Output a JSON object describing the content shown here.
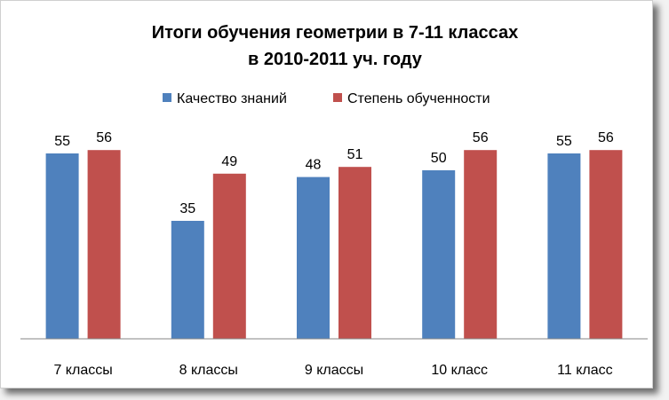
{
  "chart_data": {
    "type": "bar",
    "title": "Итоги обучения геометрии в 7-11 классах",
    "subtitle": "в 2010-2011 уч. году",
    "xlabel": "",
    "ylabel": "",
    "categories": [
      "7 классы",
      "8 классы",
      "9 классы",
      "10 класс",
      "11 класс"
    ],
    "series": [
      {
        "name": "Качество знаний",
        "values": [
          55,
          35,
          48,
          50,
          55
        ],
        "color": "#4f81bd"
      },
      {
        "name": "Степень обученности",
        "values": [
          56,
          49,
          51,
          56,
          56
        ],
        "color": "#c0504d"
      }
    ],
    "ylim": [
      0,
      60
    ],
    "grid": false,
    "legend": "top-center",
    "data_labels": true
  }
}
